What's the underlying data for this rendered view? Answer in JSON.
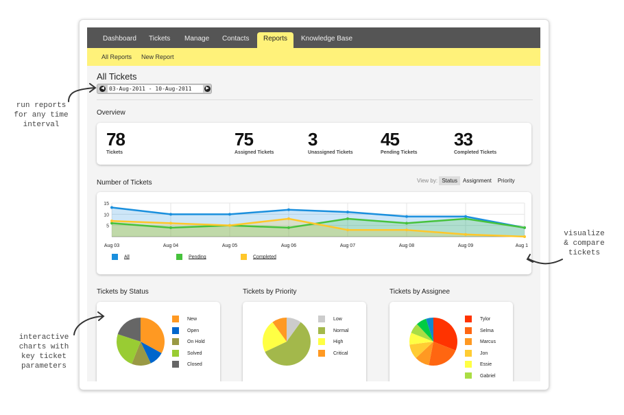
{
  "nav": {
    "tabs": [
      {
        "label": "Dashboard"
      },
      {
        "label": "Tickets"
      },
      {
        "label": "Manage"
      },
      {
        "label": "Contacts"
      },
      {
        "label": "Reports",
        "active": true
      },
      {
        "label": "Knowledge Base"
      }
    ]
  },
  "subnav": {
    "items": [
      {
        "label": "All Reports"
      },
      {
        "label": "New Report"
      }
    ]
  },
  "page": {
    "title": "All Tickets",
    "date_range": "03-Aug-2011 - 10-Aug-2011"
  },
  "overview": {
    "title": "Overview",
    "stats": [
      {
        "value": "78",
        "label": "Tickets"
      },
      {
        "value": "75",
        "label": "Assigned Tickets"
      },
      {
        "value": "3",
        "label": "Unassigned Tickets"
      },
      {
        "value": "45",
        "label": "Pending Tickets"
      },
      {
        "value": "33",
        "label": "Completed Tickets"
      }
    ]
  },
  "number_chart": {
    "title": "Number of Tickets",
    "view_by_label": "View by:",
    "view_by": [
      "Status",
      "Assignment",
      "Priority"
    ],
    "view_by_selected": "Status"
  },
  "annotations": {
    "left_top": "run reports\nfor any time\ninterval",
    "right": "visualize\n& compare\ntickets",
    "left_bottom": "interactive\ncharts with\nkey ticket\nparameters"
  },
  "chart_data": [
    {
      "type": "area",
      "x": [
        "Aug 03",
        "Aug 04",
        "Aug 05",
        "Aug 06",
        "Aug 07",
        "Aug 08",
        "Aug 09",
        "Aug 1"
      ],
      "ylim": [
        0,
        15
      ],
      "yticks": [
        "5",
        "10",
        "15"
      ],
      "grid": true,
      "legend": "bottom-left",
      "series": [
        {
          "name": "All",
          "color": "#1a8fdd",
          "values": [
            13,
            10,
            10,
            12,
            11,
            9,
            9,
            4
          ]
        },
        {
          "name": "Pending",
          "color": "#46c23c",
          "values": [
            6,
            4,
            5,
            4,
            8,
            6,
            8,
            4
          ]
        },
        {
          "name": "Completed",
          "color": "#ffc72a",
          "values": [
            7,
            6,
            5,
            8,
            3,
            3,
            1,
            0
          ]
        }
      ]
    },
    {
      "type": "pie",
      "title": "Tickets by Status",
      "slices": [
        {
          "name": "New",
          "value": 33,
          "color": "#ff9922"
        },
        {
          "name": "Open",
          "value": 10,
          "color": "#0066cc"
        },
        {
          "name": "On Hold",
          "value": 13,
          "color": "#999944"
        },
        {
          "name": "Solved",
          "value": 24,
          "color": "#99cc33"
        },
        {
          "name": "Closed",
          "value": 20,
          "color": "#666666"
        }
      ]
    },
    {
      "type": "pie",
      "title": "Tickets by Priority",
      "slices": [
        {
          "name": "Low",
          "value": 10,
          "color": "#cccccc"
        },
        {
          "name": "Normal",
          "value": 58,
          "color": "#a3b84b"
        },
        {
          "name": "High",
          "value": 22,
          "color": "#ffff44"
        },
        {
          "name": "Critical",
          "value": 10,
          "color": "#ff9922"
        }
      ]
    },
    {
      "type": "pie",
      "title": "Tickets by Assignee",
      "slices": [
        {
          "name": "Tylor",
          "value": 31,
          "color": "#ff3300"
        },
        {
          "name": "Selma",
          "value": 22,
          "color": "#ff6611"
        },
        {
          "name": "Marcus",
          "value": 10,
          "color": "#ff9922"
        },
        {
          "name": "Jon",
          "value": 10,
          "color": "#ffcc33"
        },
        {
          "name": "Essie",
          "value": 8,
          "color": "#ffff44"
        },
        {
          "name": "Gabriel",
          "value": 7,
          "color": "#aadd44"
        },
        {
          "name": "",
          "value": 7,
          "color": "#00cc44"
        },
        {
          "name": "",
          "value": 5,
          "color": "#1188cc"
        }
      ]
    }
  ]
}
